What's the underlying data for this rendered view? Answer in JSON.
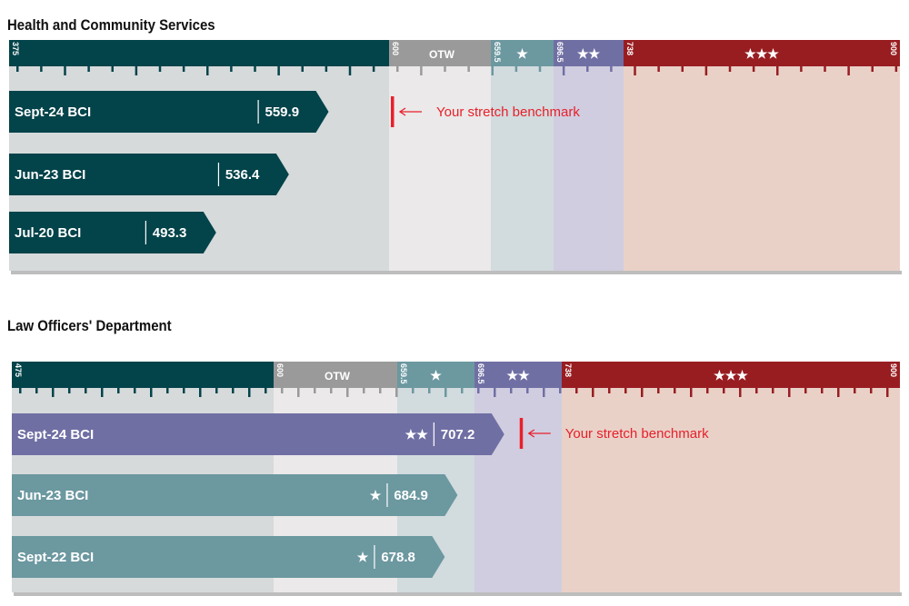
{
  "colors": {
    "dark_teal": "#03434a",
    "otw": "#9a9a9a",
    "one_star": "#6c98a0",
    "two_star": "#706fa4",
    "three_star": "#981d21",
    "bg_dark": "#d6dadb",
    "bg_otw": "#ebe9e9",
    "bg_one": "#d2dbde",
    "bg_two": "#d0cde0",
    "bg_three": "#e9d1c8",
    "stretch": "#e8202a"
  },
  "chart_data": [
    {
      "type": "bar",
      "title": "Health and Community Services",
      "orientation": "horizontal",
      "scale": [
        375,
        900
      ],
      "bands": [
        {
          "label": "375",
          "start": 375,
          "end": 600,
          "stars": ""
        },
        {
          "label": "600",
          "start": 600,
          "end": 659.5,
          "stars": "",
          "name": "OTW"
        },
        {
          "label": "659.5",
          "start": 659.5,
          "end": 696.5,
          "stars": "★"
        },
        {
          "label": "696.5",
          "start": 696.5,
          "end": 738,
          "stars": "★★"
        },
        {
          "label": "738",
          "start": 738,
          "end": 900,
          "stars": "★★★"
        }
      ],
      "end_label": "900",
      "bars": [
        {
          "category": "Sept-24 BCI",
          "value": 559.9,
          "value_label": "559.9",
          "stars": ""
        },
        {
          "category": "Jun-23 BCI",
          "value": 536.4,
          "value_label": "536.4",
          "stars": ""
        },
        {
          "category": "Jul-20 BCI",
          "value": 493.3,
          "value_label": "493.3",
          "stars": ""
        }
      ],
      "stretch_benchmark": {
        "value": 600,
        "label": "Your stretch benchmark"
      }
    },
    {
      "type": "bar",
      "title": "Law Officers' Department",
      "orientation": "horizontal",
      "scale": [
        475,
        900
      ],
      "bands": [
        {
          "label": "475",
          "start": 475,
          "end": 600,
          "stars": ""
        },
        {
          "label": "600",
          "start": 600,
          "end": 659.5,
          "stars": "",
          "name": "OTW"
        },
        {
          "label": "659.5",
          "start": 659.5,
          "end": 696.5,
          "stars": "★"
        },
        {
          "label": "696.5",
          "start": 696.5,
          "end": 738,
          "stars": "★★"
        },
        {
          "label": "738",
          "start": 738,
          "end": 900,
          "stars": "★★★"
        }
      ],
      "end_label": "900",
      "bars": [
        {
          "category": "Sept-24 BCI",
          "value": 707.2,
          "value_label": "707.2",
          "stars": "★★"
        },
        {
          "category": "Jun-23 BCI",
          "value": 684.9,
          "value_label": "684.9",
          "stars": "★"
        },
        {
          "category": "Sept-22 BCI",
          "value": 678.8,
          "value_label": "678.8",
          "stars": "★"
        }
      ],
      "stretch_benchmark": {
        "value": 718,
        "label": "Your stretch benchmark"
      }
    }
  ]
}
